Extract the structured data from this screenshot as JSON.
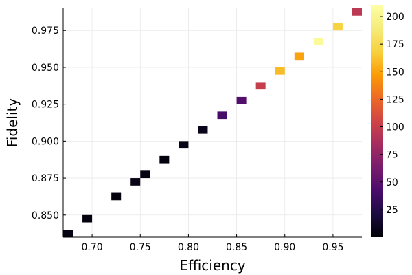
{
  "chart_data": {
    "type": "heatmap",
    "title": "",
    "xlabel": "Efficiency",
    "ylabel": "Fidelity",
    "xlim": [
      0.67,
      0.98
    ],
    "ylim": [
      0.835,
      0.99
    ],
    "xticks": [
      "0.70",
      "0.75",
      "0.80",
      "0.85",
      "0.90",
      "0.95"
    ],
    "yticks": [
      "0.850",
      "0.875",
      "0.900",
      "0.925",
      "0.950",
      "0.975"
    ],
    "grid": true,
    "colormap": "inferno",
    "colorbar": {
      "range": [
        0,
        210
      ],
      "ticks": [
        "25",
        "50",
        "75",
        "100",
        "125",
        "150",
        "175",
        "200"
      ]
    },
    "cell_size": {
      "dx": 0.01,
      "dy": 0.005
    },
    "cells": [
      {
        "x": 0.675,
        "y": 0.8375,
        "value": 5
      },
      {
        "x": 0.695,
        "y": 0.8475,
        "value": 4
      },
      {
        "x": 0.725,
        "y": 0.8625,
        "value": 3
      },
      {
        "x": 0.745,
        "y": 0.8725,
        "value": 6
      },
      {
        "x": 0.755,
        "y": 0.8775,
        "value": 5
      },
      {
        "x": 0.775,
        "y": 0.8875,
        "value": 4
      },
      {
        "x": 0.795,
        "y": 0.8975,
        "value": 6
      },
      {
        "x": 0.815,
        "y": 0.9075,
        "value": 8
      },
      {
        "x": 0.835,
        "y": 0.9175,
        "value": 40
      },
      {
        "x": 0.855,
        "y": 0.9275,
        "value": 45
      },
      {
        "x": 0.875,
        "y": 0.9375,
        "value": 100
      },
      {
        "x": 0.895,
        "y": 0.9475,
        "value": 160
      },
      {
        "x": 0.915,
        "y": 0.9575,
        "value": 150
      },
      {
        "x": 0.935,
        "y": 0.9675,
        "value": 205
      },
      {
        "x": 0.955,
        "y": 0.9775,
        "value": 170
      },
      {
        "x": 0.975,
        "y": 0.9875,
        "value": 95
      }
    ]
  }
}
